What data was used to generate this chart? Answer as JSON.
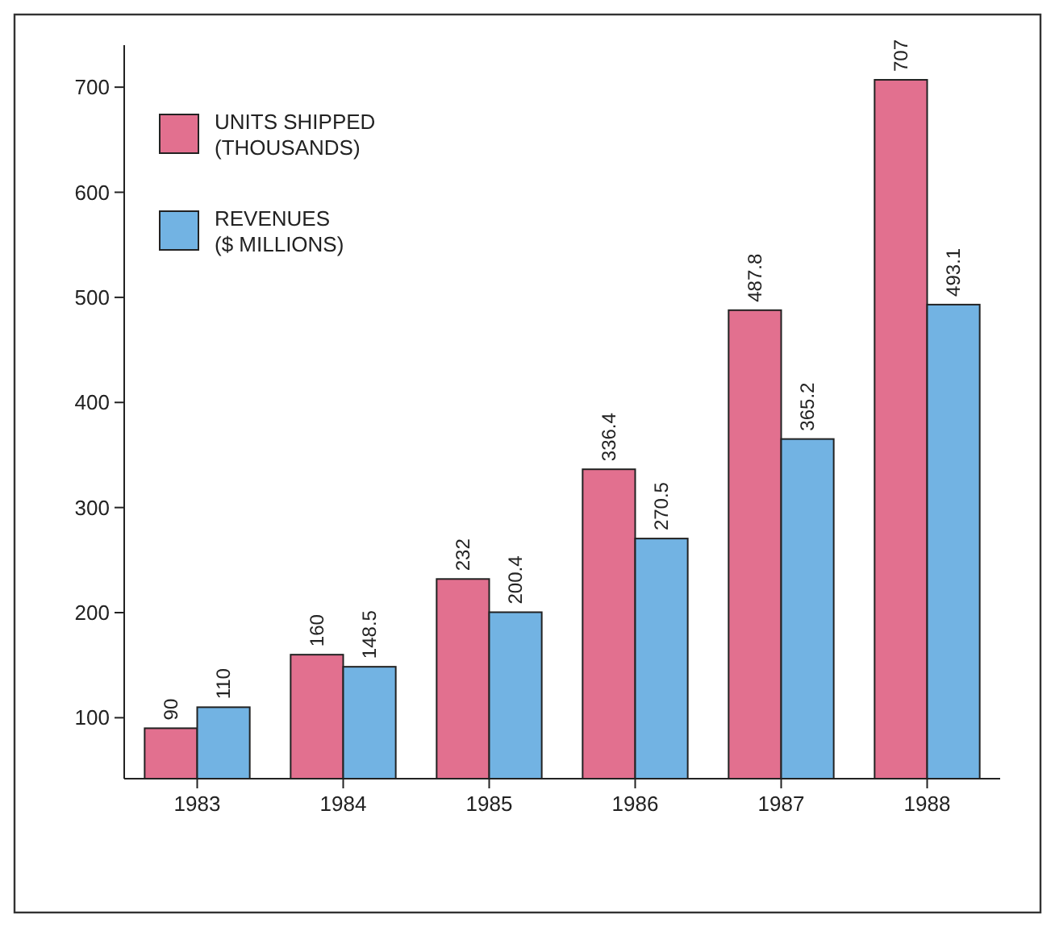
{
  "chart_data": {
    "type": "bar",
    "categories": [
      "1983",
      "1984",
      "1985",
      "1986",
      "1987",
      "1988"
    ],
    "series": [
      {
        "name": "UNITS SHIPPED (THOUSANDS)",
        "color": "#e2708f",
        "values": [
          90,
          160,
          232,
          336.4,
          487.8,
          707
        ]
      },
      {
        "name": "REVENUES ($ MILLIONS)",
        "color": "#72b3e3",
        "values": [
          110,
          148.5,
          200.4,
          270.5,
          365.2,
          493.1
        ]
      }
    ],
    "ylim": [
      42,
      740
    ],
    "yticks": [
      100,
      200,
      300,
      400,
      500,
      600,
      700
    ],
    "data_labels": true,
    "legend": "top left",
    "grid": false
  }
}
